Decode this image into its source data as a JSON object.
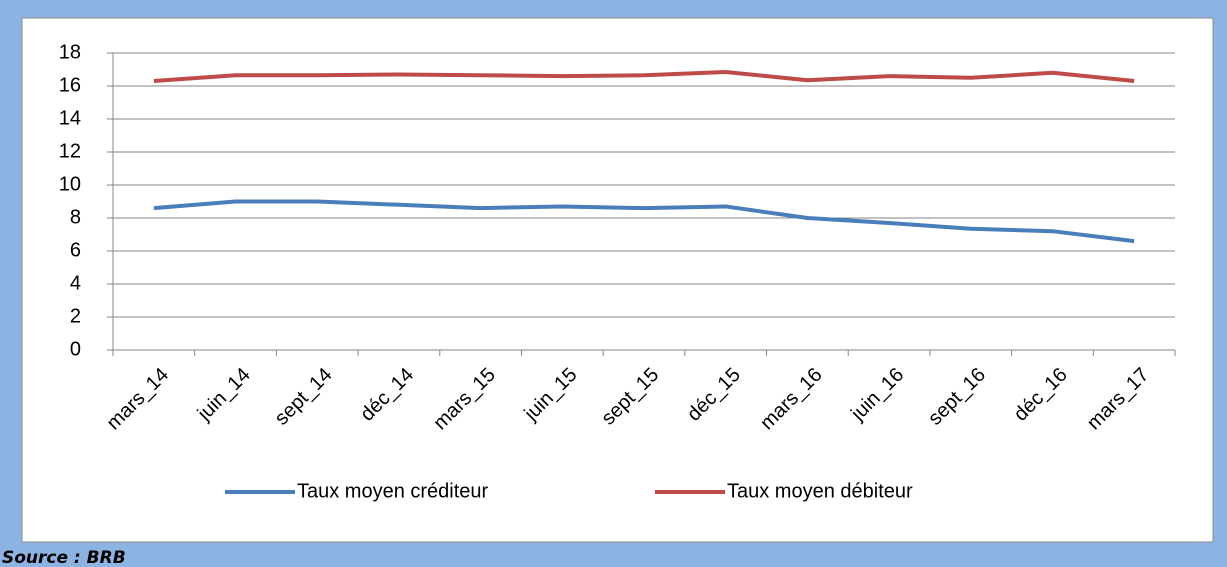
{
  "chart_data": {
    "type": "line",
    "categories": [
      "mars_14",
      "juin_14",
      "sept_14",
      "déc_14",
      "mars_15",
      "juin_15",
      "sept_15",
      "déc_15",
      "mars_16",
      "juin_16",
      "sept_16",
      "déc_16",
      "mars_17"
    ],
    "series": [
      {
        "name": "Taux moyen créditeur",
        "color": "#4a7ebb",
        "values": [
          8.6,
          9.0,
          9.0,
          8.8,
          8.6,
          8.7,
          8.6,
          8.7,
          8.0,
          7.7,
          7.35,
          7.2,
          6.6
        ]
      },
      {
        "name": "Taux moyen débiteur",
        "color": "#be4b48",
        "values": [
          16.3,
          16.65,
          16.65,
          16.7,
          16.65,
          16.6,
          16.65,
          16.85,
          16.35,
          16.6,
          16.5,
          16.8,
          16.3
        ]
      }
    ],
    "ylim": [
      0,
      18
    ],
    "yticks": [
      0,
      2,
      4,
      6,
      8,
      10,
      12,
      14,
      16,
      18
    ],
    "grid": true,
    "legend": "bottom"
  },
  "source": "Source : BRB"
}
